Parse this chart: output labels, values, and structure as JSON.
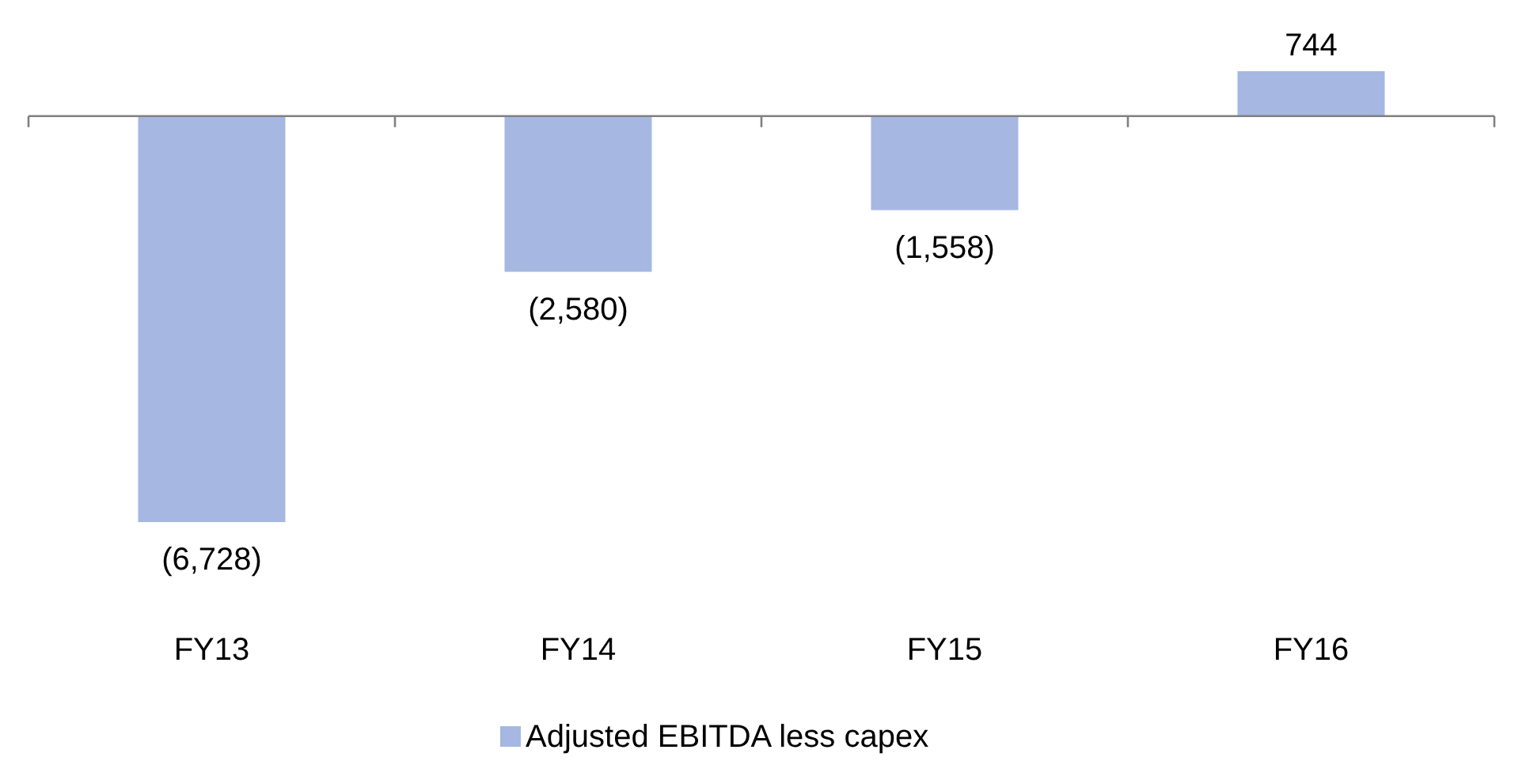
{
  "chart_data": {
    "type": "bar",
    "categories": [
      "FY13",
      "FY14",
      "FY15",
      "FY16"
    ],
    "series": [
      {
        "name": "Adjusted EBITDA less capex",
        "color": "#a6b7e2",
        "values": [
          -6728,
          -2580,
          -1558,
          744
        ],
        "value_labels": [
          "(6,728)",
          "(2,580)",
          "(1,558)",
          "744"
        ]
      }
    ],
    "legend": "bottom"
  }
}
